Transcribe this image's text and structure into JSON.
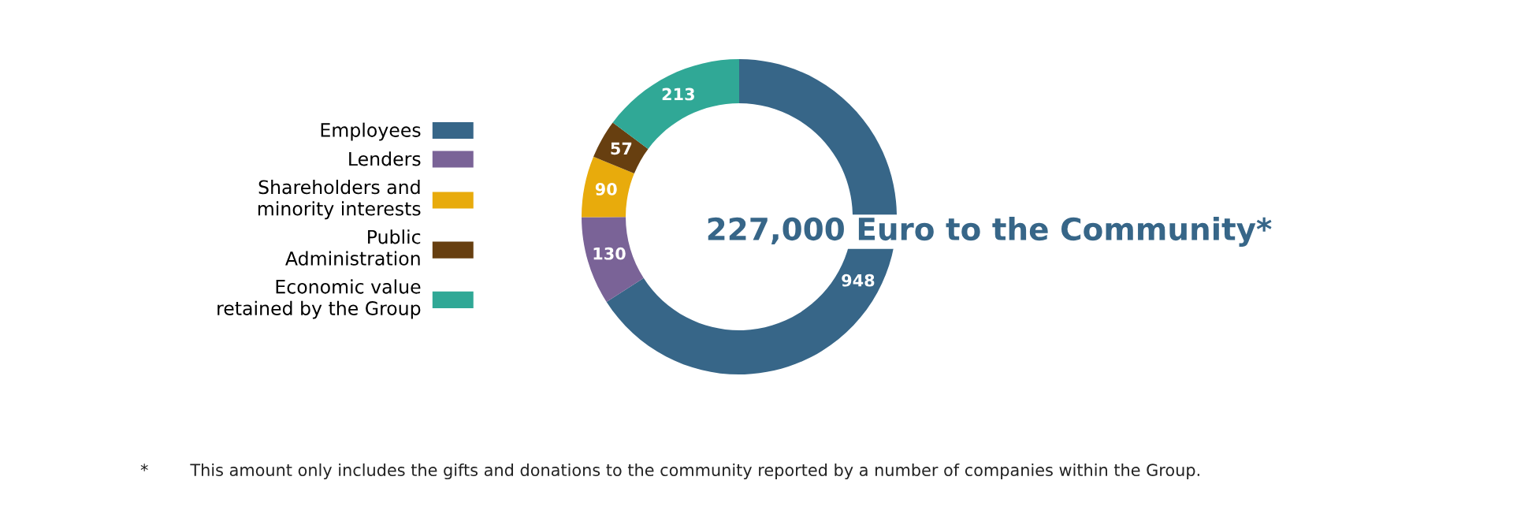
{
  "chart_data": {
    "type": "donut",
    "categories": [
      "Employees",
      "Lenders",
      "Shareholders and\nminority interests",
      "Public\nAdministration",
      "Economic value\nretained by the Group"
    ],
    "values": [
      948,
      130,
      90,
      57,
      213
    ],
    "colors": [
      "#376688",
      "#7a6397",
      "#e8ab0c",
      "#673f10",
      "#30a896"
    ],
    "data_labels": true,
    "legend": "left",
    "annotations": [
      "227,000 Euro to the Community*",
      "*        This amount only includes the gifts and donations to the community reported by a number of companies within the Group."
    ]
  }
}
